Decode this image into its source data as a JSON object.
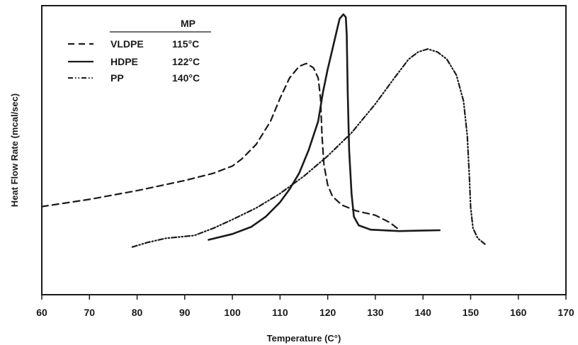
{
  "chart_data": {
    "type": "line",
    "xlabel": "Temperature (C°)",
    "ylabel": "Heat Flow Rate (mcal/sec)",
    "xlim": [
      60,
      170
    ],
    "ylim": [
      0,
      100
    ],
    "x_ticks": [
      "60",
      "70",
      "80",
      "90",
      "100",
      "110",
      "120",
      "130",
      "140",
      "150",
      "160",
      "170"
    ],
    "grid": false,
    "legend": {
      "placement": "top-left",
      "header": "MP",
      "entries": [
        {
          "name": "VLDPE",
          "mp": "115°C",
          "style": "dashed"
        },
        {
          "name": "HDPE",
          "mp": "122°C",
          "style": "solid"
        },
        {
          "name": "PP",
          "mp": "140°C",
          "style": "dash-dot-dot"
        }
      ]
    },
    "series": [
      {
        "name": "VLDPE",
        "style": "dashed",
        "points": [
          [
            60,
            30.5
          ],
          [
            70,
            33
          ],
          [
            80,
            36
          ],
          [
            90,
            39.5
          ],
          [
            96,
            42
          ],
          [
            100,
            44.5
          ],
          [
            102,
            47
          ],
          [
            105,
            52
          ],
          [
            108,
            60
          ],
          [
            110,
            68
          ],
          [
            112,
            75
          ],
          [
            114,
            79
          ],
          [
            115.5,
            80
          ],
          [
            117,
            78.5
          ],
          [
            118,
            75
          ],
          [
            118.5,
            68
          ],
          [
            118.8,
            55
          ],
          [
            119.2,
            45
          ],
          [
            120,
            38
          ],
          [
            121,
            34
          ],
          [
            123,
            31
          ],
          [
            126,
            29
          ],
          [
            130,
            27.5
          ],
          [
            133,
            25
          ],
          [
            135,
            22.5
          ]
        ]
      },
      {
        "name": "HDPE",
        "style": "solid",
        "points": [
          [
            95,
            19
          ],
          [
            100,
            21
          ],
          [
            104,
            23.5
          ],
          [
            107,
            27
          ],
          [
            110,
            32
          ],
          [
            112,
            36.5
          ],
          [
            114,
            42
          ],
          [
            116,
            50
          ],
          [
            118,
            60
          ],
          [
            119,
            70
          ],
          [
            120,
            78
          ],
          [
            121,
            85
          ],
          [
            122,
            92
          ],
          [
            122.5,
            95.5
          ],
          [
            123.3,
            97
          ],
          [
            123.8,
            96
          ],
          [
            124,
            90
          ],
          [
            124.2,
            70
          ],
          [
            124.5,
            50
          ],
          [
            125,
            35
          ],
          [
            125.5,
            27
          ],
          [
            126.5,
            24
          ],
          [
            129,
            22.5
          ],
          [
            135,
            22
          ],
          [
            140,
            22.2
          ],
          [
            143.5,
            22.3
          ]
        ]
      },
      {
        "name": "PP",
        "style": "dash-dot-dot",
        "points": [
          [
            79,
            16.5
          ],
          [
            82,
            18
          ],
          [
            86,
            19.5
          ],
          [
            92,
            20.5
          ],
          [
            96,
            23
          ],
          [
            100,
            26
          ],
          [
            105,
            30
          ],
          [
            110,
            35
          ],
          [
            115,
            41
          ],
          [
            120,
            48
          ],
          [
            125,
            56
          ],
          [
            130,
            66
          ],
          [
            134,
            75
          ],
          [
            137,
            81.5
          ],
          [
            139,
            84
          ],
          [
            141,
            85
          ],
          [
            143,
            84
          ],
          [
            145,
            81.5
          ],
          [
            147,
            76
          ],
          [
            148.5,
            67
          ],
          [
            149.3,
            55
          ],
          [
            149.7,
            42
          ],
          [
            150,
            30
          ],
          [
            150.5,
            23
          ],
          [
            151.5,
            19.5
          ],
          [
            153,
            17.5
          ]
        ]
      }
    ]
  }
}
